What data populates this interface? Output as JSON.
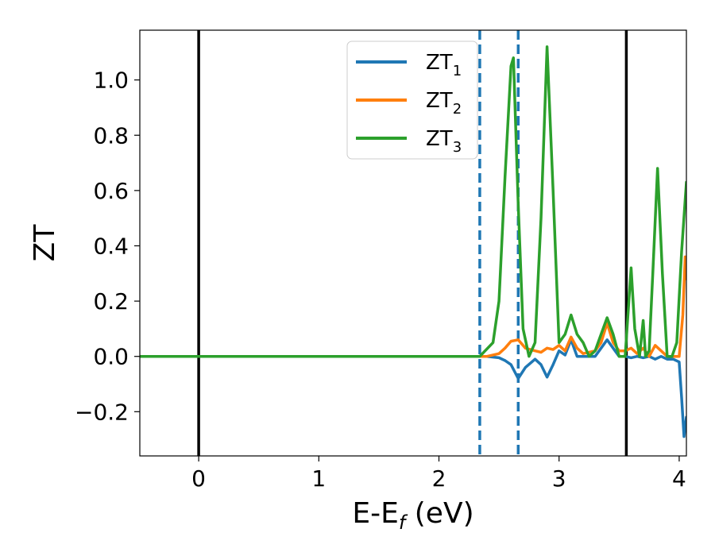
{
  "chart_data": {
    "type": "line",
    "xlabel": "E-E",
    "xlabel_sub": "f",
    "xlabel_unit": " (eV)",
    "ylabel": "ZT",
    "xlim": [
      -0.49,
      4.06
    ],
    "ylim": [
      -0.36,
      1.18
    ],
    "xticks": [
      0,
      1,
      2,
      3,
      4
    ],
    "xtick_labels": [
      "0",
      "1",
      "2",
      "3",
      "4"
    ],
    "yticks": [
      -0.2,
      0.0,
      0.2,
      0.4,
      0.6,
      0.8,
      1.0
    ],
    "ytick_labels": [
      "−0.2",
      "0.0",
      "0.2",
      "0.4",
      "0.6",
      "0.8",
      "1.0"
    ],
    "grid": false,
    "legend_position": "top-center",
    "vlines": [
      {
        "x": 0.0,
        "style": "solid",
        "color": "#000000"
      },
      {
        "x": 3.56,
        "style": "solid",
        "color": "#000000"
      },
      {
        "x": 2.34,
        "style": "dashed",
        "color": "#1f77b4"
      },
      {
        "x": 2.66,
        "style": "dashed",
        "color": "#1f77b4"
      }
    ],
    "series": [
      {
        "name": "ZT",
        "name_sub": "1",
        "color": "#1f77b4",
        "x": [
          -0.49,
          2.4,
          2.5,
          2.55,
          2.6,
          2.66,
          2.72,
          2.8,
          2.85,
          2.9,
          2.95,
          3.0,
          3.05,
          3.1,
          3.15,
          3.2,
          3.3,
          3.4,
          3.45,
          3.5,
          3.55,
          3.6,
          3.65,
          3.7,
          3.75,
          3.8,
          3.85,
          3.9,
          3.95,
          4.0,
          4.02,
          4.04,
          4.06
        ],
        "values": [
          0.0,
          0.0,
          -0.005,
          -0.015,
          -0.03,
          -0.08,
          -0.04,
          -0.01,
          -0.03,
          -0.075,
          -0.03,
          0.02,
          0.005,
          0.06,
          0.0,
          0.0,
          0.0,
          0.06,
          0.03,
          0.0,
          0.0,
          -0.005,
          0.0,
          -0.005,
          0.0,
          -0.01,
          0.0,
          -0.01,
          -0.01,
          -0.02,
          -0.15,
          -0.29,
          -0.22
        ]
      },
      {
        "name": "ZT",
        "name_sub": "2",
        "color": "#ff7f0e",
        "x": [
          -0.49,
          2.4,
          2.5,
          2.55,
          2.6,
          2.66,
          2.72,
          2.8,
          2.85,
          2.9,
          2.95,
          3.0,
          3.05,
          3.1,
          3.15,
          3.2,
          3.3,
          3.35,
          3.4,
          3.45,
          3.5,
          3.55,
          3.6,
          3.65,
          3.7,
          3.75,
          3.8,
          3.85,
          3.9,
          3.95,
          4.0,
          4.03,
          4.05,
          4.06
        ],
        "values": [
          0.0,
          0.0,
          0.01,
          0.03,
          0.055,
          0.06,
          0.03,
          0.02,
          0.015,
          0.03,
          0.025,
          0.04,
          0.02,
          0.07,
          0.03,
          0.01,
          0.02,
          0.05,
          0.12,
          0.05,
          0.02,
          0.02,
          0.03,
          0.01,
          0.03,
          0.0,
          0.04,
          0.02,
          0.0,
          0.0,
          0.0,
          0.15,
          0.36,
          0.28
        ]
      },
      {
        "name": "ZT",
        "name_sub": "3",
        "color": "#2ca02c",
        "x": [
          -0.49,
          2.34,
          2.45,
          2.5,
          2.55,
          2.6,
          2.62,
          2.66,
          2.7,
          2.75,
          2.8,
          2.85,
          2.9,
          2.95,
          3.0,
          3.05,
          3.1,
          3.15,
          3.2,
          3.25,
          3.3,
          3.35,
          3.4,
          3.45,
          3.5,
          3.55,
          3.6,
          3.63,
          3.67,
          3.7,
          3.72,
          3.75,
          3.78,
          3.82,
          3.86,
          3.9,
          3.94,
          3.98,
          4.02,
          4.06
        ],
        "values": [
          0.0,
          0.0,
          0.05,
          0.2,
          0.65,
          1.05,
          1.08,
          0.55,
          0.1,
          0.0,
          0.05,
          0.5,
          1.12,
          0.6,
          0.05,
          0.08,
          0.15,
          0.08,
          0.05,
          0.0,
          0.02,
          0.08,
          0.14,
          0.08,
          0.0,
          0.0,
          0.32,
          0.1,
          0.0,
          0.13,
          0.0,
          0.02,
          0.3,
          0.68,
          0.3,
          0.0,
          0.0,
          0.05,
          0.38,
          0.63
        ]
      }
    ]
  }
}
